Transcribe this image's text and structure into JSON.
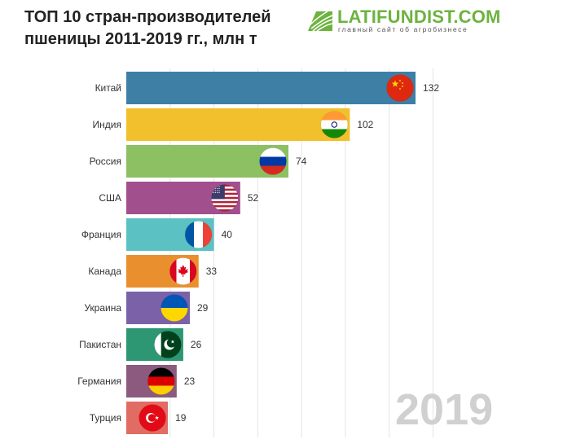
{
  "header": {
    "title_line1": "ТОП 10 стран-производителей",
    "title_line2": "пшеницы 2011-2019 гг., млн т"
  },
  "logo": {
    "name": "LATIFUNDIST.COM",
    "tagline": "главный сайт об агробизнесе",
    "color": "#6cb33f"
  },
  "year_label": "2019",
  "chart_data": {
    "type": "bar",
    "orientation": "horizontal",
    "title": "ТОП 10 стран-производителей пшеницы 2011-2019 гг., млн т",
    "categories": [
      "Китай",
      "Индия",
      "Россия",
      "США",
      "Франция",
      "Канада",
      "Украина",
      "Пакистан",
      "Германия",
      "Турция"
    ],
    "values": [
      132,
      102,
      74,
      52,
      40,
      33,
      29,
      26,
      23,
      19
    ],
    "colors": [
      "#3e7fa6",
      "#f2bf2d",
      "#8cc062",
      "#a24f8e",
      "#5cc1c3",
      "#e98f2d",
      "#7b62a8",
      "#2d9672",
      "#8b5a7e",
      "#e06c63"
    ],
    "flags": [
      "china-flag-icon",
      "india-flag-icon",
      "russia-flag-icon",
      "usa-flag-icon",
      "france-flag-icon",
      "canada-flag-icon",
      "ukraine-flag-icon",
      "pakistan-flag-icon",
      "germany-flag-icon",
      "turkey-flag-icon"
    ],
    "xlim": [
      0,
      132
    ],
    "grid": true,
    "legend": "none"
  }
}
